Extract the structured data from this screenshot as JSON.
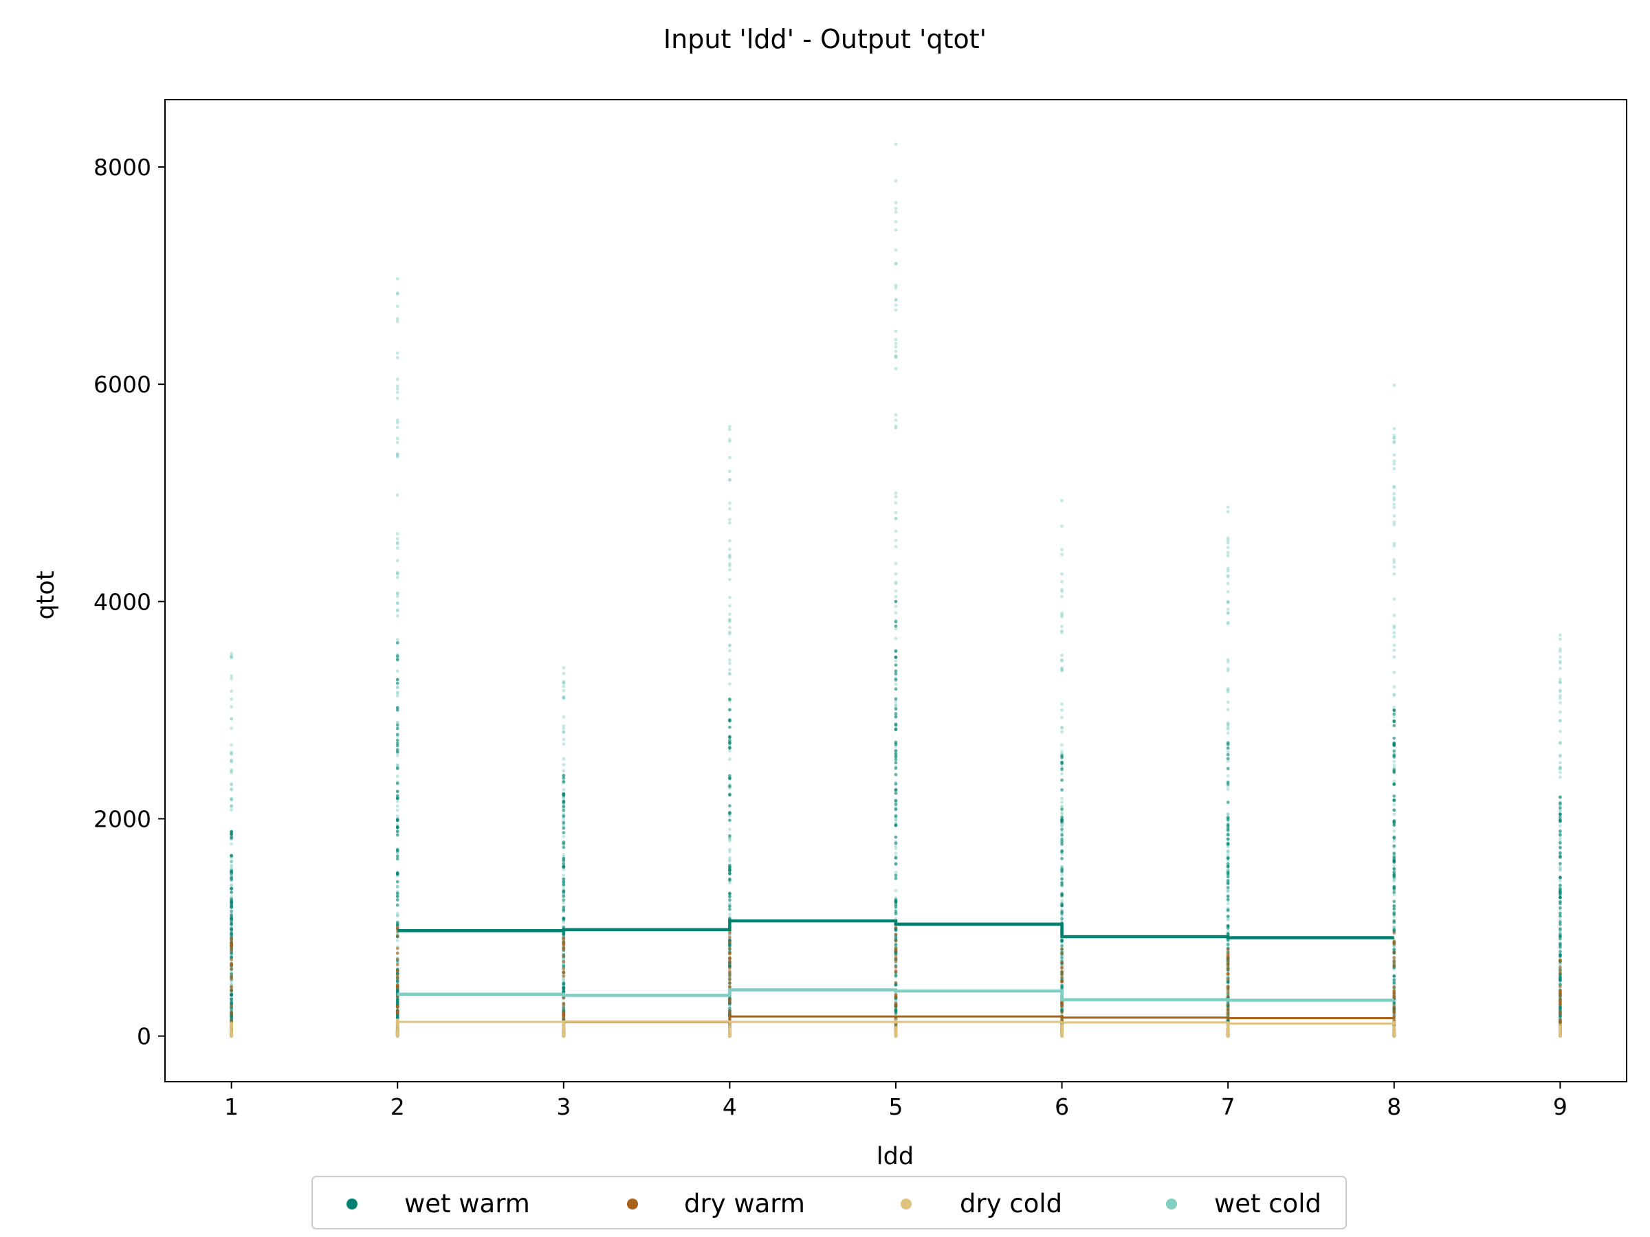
{
  "chart_data": {
    "type": "scatter",
    "title": "Input 'ldd' - Output 'qtot'",
    "xlabel": "ldd",
    "ylabel": "qtot",
    "xlim": [
      0.6,
      9.4
    ],
    "ylim": [
      -420,
      8620
    ],
    "x_ticks": [
      1,
      2,
      3,
      4,
      5,
      6,
      7,
      8,
      9
    ],
    "y_ticks": [
      0,
      2000,
      4000,
      6000,
      8000
    ],
    "grid": false,
    "legend_placement": "below plot, centered, 4 columns",
    "series": [
      {
        "name": "wet warm",
        "color": "#00806e",
        "scatter_max": [
          1880,
          3620,
          2400,
          3100,
          4000,
          2580,
          2700,
          3000,
          2200
        ],
        "step_line": {
          "x": [
            2,
            3,
            4,
            5,
            6,
            7,
            8
          ],
          "y": [
            970,
            980,
            1060,
            1030,
            915,
            905,
            905
          ]
        }
      },
      {
        "name": "dry warm",
        "color": "#a6611a",
        "scatter_max": [
          900,
          1000,
          900,
          1000,
          1000,
          800,
          800,
          950,
          700
        ],
        "step_line": {
          "x": [
            2,
            3,
            4,
            5,
            6,
            7,
            8
          ],
          "y": [
            130,
            130,
            180,
            180,
            170,
            165,
            165
          ]
        }
      },
      {
        "name": "dry cold",
        "color": "#dfc27d",
        "scatter_max": [
          120,
          150,
          120,
          150,
          150,
          100,
          100,
          130,
          100
        ],
        "step_line": {
          "x": [
            2,
            3,
            4,
            5,
            6,
            7,
            8
          ],
          "y": [
            130,
            135,
            130,
            130,
            125,
            115,
            115
          ]
        }
      },
      {
        "name": "wet cold",
        "color": "#80cdc1",
        "scatter_max": [
          3520,
          6970,
          3390,
          5610,
          8210,
          4930,
          4870,
          5990,
          3690
        ],
        "step_line": {
          "x": [
            2,
            3,
            4,
            5,
            6,
            7,
            8
          ],
          "y": [
            385,
            375,
            425,
            415,
            335,
            330,
            330
          ]
        }
      }
    ]
  }
}
